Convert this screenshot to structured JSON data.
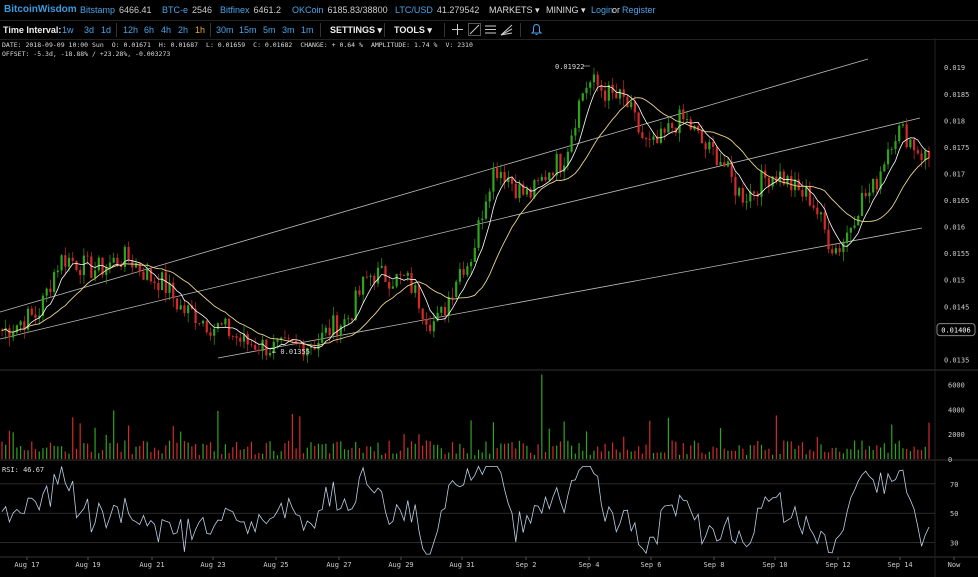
{
  "header": {
    "brand": "BitcoinWisdom",
    "tickers": [
      {
        "name": "Bitstamp",
        "value": "6466.41"
      },
      {
        "name": "BTC-e",
        "value": "2546"
      },
      {
        "name": "Bitfinex",
        "value": "6461.2"
      },
      {
        "name": "OKCoin",
        "value": "6185.83/38800"
      },
      {
        "name": "LTC/USD",
        "value": "41.279542"
      }
    ],
    "markets_label": "MARKETS",
    "mining_label": "MINING",
    "login_label": "Login",
    "or_label": "or",
    "register_label": "Register"
  },
  "toolbar": {
    "time_interval_label": "Time Interval:",
    "intervals": [
      "1w",
      "3d",
      "1d",
      "12h",
      "6h",
      "4h",
      "2h",
      "1h",
      "30m",
      "15m",
      "5m",
      "3m",
      "1m"
    ],
    "active_interval": "1h",
    "settings_label": "SETTINGS",
    "tools_label": "TOOLS",
    "tool_icons": [
      "crosshair-icon",
      "trendline-icon",
      "horizontal-lines-icon",
      "fib-fan-icon",
      "alert-bell-icon"
    ]
  },
  "info": {
    "date": "DATE: 2018-09-09 10:00 Sun",
    "open": "O: 0.01671",
    "high": "H: 0.01687",
    "low": "L: 0.01659",
    "close": "C: 0.01682",
    "change": "CHANGE: + 0.64 %",
    "amplitude": "AMPLITUDE: 1.74 %",
    "volume": "V: 2310",
    "offset": "OFFSET: -5.3d, -18.88% / +23.28%, -0.003273"
  },
  "price_axis": {
    "ticks": [
      "0.019",
      "0.0185",
      "0.018",
      "0.0175",
      "0.017",
      "0.0165",
      "0.016",
      "0.0155",
      "0.015",
      "0.0145",
      "0.014",
      "0.0135"
    ],
    "current": "0.01406",
    "high_label": "0.01922",
    "low_label": "0.01355"
  },
  "volume_axis": {
    "ticks": [
      "6000",
      "4000",
      "2000",
      "0"
    ]
  },
  "rsi": {
    "label": "RSI: 46.67",
    "ticks": [
      "70",
      "50",
      "30"
    ]
  },
  "date_axis": {
    "ticks": [
      "Aug 17",
      "Aug 19",
      "Aug 21",
      "Aug 23",
      "Aug 25",
      "Aug 27",
      "Aug 29",
      "Aug 31",
      "Sep 2",
      "Sep 4",
      "Sep 6",
      "Sep 8",
      "Sep 10",
      "Sep 12",
      "Sep 14",
      "Now"
    ]
  },
  "colors": {
    "up": "#2fa51b",
    "down": "#d42a2a",
    "background": "#000000",
    "accent": "#4aa3e8",
    "ma_fast": "#ffffff",
    "ma_slow": "#e8d48a",
    "rsi_line": "#b9cfe6"
  },
  "chart_data": {
    "type": "candlestick",
    "price_anchors": {
      "x_dates": [
        "Aug 16",
        "Aug 17",
        "Aug 18",
        "Aug 19",
        "Aug 20",
        "Aug 21",
        "Aug 22",
        "Aug 23",
        "Aug 24",
        "Aug 25",
        "Aug 26",
        "Aug 27",
        "Aug 28",
        "Aug 29",
        "Aug 30",
        "Aug 31",
        "Sep 1",
        "Sep 2",
        "Sep 3",
        "Sep 4",
        "Sep 5",
        "Sep 6",
        "Sep 7",
        "Sep 8",
        "Sep 9",
        "Sep 10",
        "Sep 11",
        "Sep 12",
        "Sep 13",
        "Sep 14",
        "Sep 14 (now)"
      ],
      "close": [
        0.01405,
        0.0143,
        0.0154,
        0.0152,
        0.0154,
        0.015,
        0.0144,
        0.0141,
        0.0138,
        0.0137,
        0.0138,
        0.0142,
        0.0151,
        0.015,
        0.0142,
        0.0153,
        0.0171,
        0.0166,
        0.0172,
        0.0187,
        0.0184,
        0.0175,
        0.018,
        0.0174,
        0.0166,
        0.017,
        0.0166,
        0.0156,
        0.0166,
        0.0178,
        0.0173
      ]
    },
    "high": 0.01922,
    "low": 0.01355,
    "volume_range": [
      0,
      7000
    ],
    "rsi_range": [
      20,
      85
    ]
  }
}
